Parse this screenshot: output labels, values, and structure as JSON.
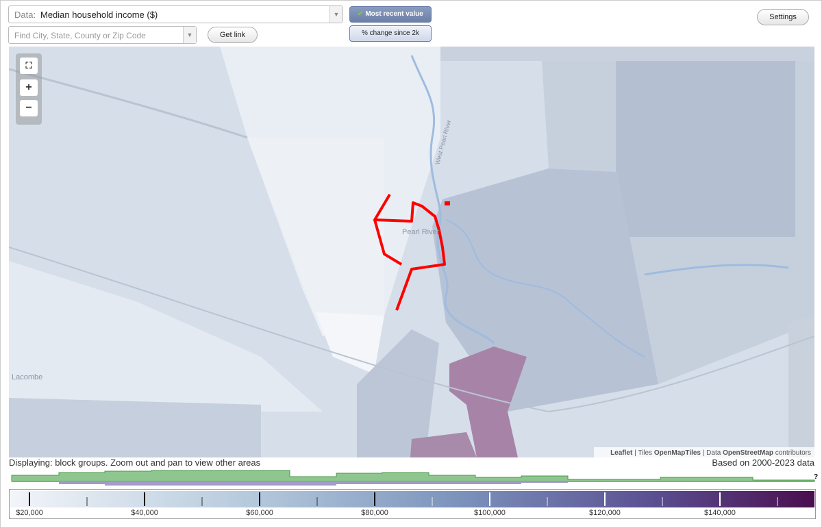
{
  "controls": {
    "data_label": "Data:",
    "data_value": "Median household income ($)",
    "search_placeholder": "Find City, State, County or Zip Code",
    "get_link": "Get link",
    "toggle_recent": "Most recent value",
    "toggle_change": "% change since 2k",
    "settings": "Settings"
  },
  "map": {
    "places": [
      "Pearl River",
      "Lacombe",
      "West Pearl River"
    ],
    "attribution": {
      "leaflet": "Leaflet",
      "tiles_label": "Tiles",
      "tiles": "OpenMapTiles",
      "data_label": "Data",
      "data": "OpenStreetMap",
      "contributors": "contributors"
    }
  },
  "status": {
    "displaying": "Displaying: block groups. Zoom out and pan to view other areas",
    "based_on": "Based on 2000-2023 data",
    "help": "?"
  },
  "legend": {
    "labels": [
      "$20,000",
      "$40,000",
      "$60,000",
      "$80,000",
      "$100,000",
      "$120,000",
      "$140,000"
    ]
  }
}
